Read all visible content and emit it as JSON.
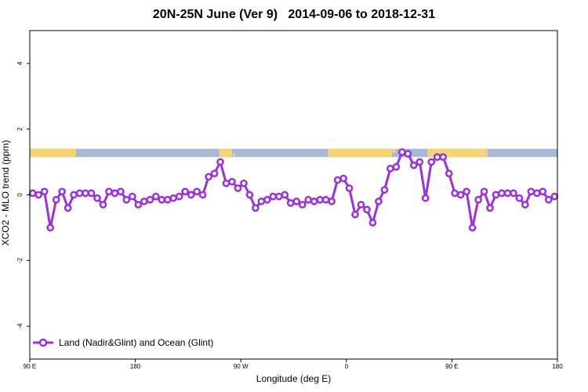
{
  "chart_data": {
    "type": "line",
    "title": "20N-25N June (Ver 9)   2014-09-06 to 2018-12-31",
    "xlabel": "Longitude (deg E)",
    "ylabel": "XCO2 - MLO trend (ppm)",
    "xlim": [
      90,
      360
    ],
    "ylim": [
      -5,
      5
    ],
    "x_ticks": [
      {
        "value": 90,
        "label": "90 E"
      },
      {
        "value": 144,
        "label": "180"
      },
      {
        "value": 198,
        "label": "90 W"
      },
      {
        "value": 252,
        "label": "0"
      },
      {
        "value": 306,
        "label": "90 E"
      },
      {
        "value": 360,
        "label": "180"
      }
    ],
    "y_ticks": [
      -4,
      -2,
      0,
      2,
      4
    ],
    "grid": false,
    "legend_position": "bottom-left",
    "land_ocean_strip": {
      "ymin": 1.15,
      "ymax": 1.4,
      "ocean_color": "#a8b9d6",
      "land_color": "#f7d473"
    },
    "series": [
      {
        "name": "Land (Nadir&Glint) and Ocean (Glint)",
        "color": "#9b30e0",
        "x": [
          91.5,
          94.5,
          97.5,
          100.5,
          103.5,
          106.5,
          109.5,
          112.5,
          115.5,
          118.5,
          121.5,
          124.5,
          127.5,
          130.5,
          133.5,
          136.5,
          139.5,
          142.5,
          145.5,
          148.5,
          151.5,
          154.5,
          157.5,
          160.5,
          163.5,
          166.5,
          169.5,
          172.5,
          175.5,
          178.5,
          181.5,
          184.5,
          187.5,
          190.5,
          193.5,
          196.5,
          199.5,
          202.5,
          205.5,
          208.5,
          211.5,
          214.5,
          217.5,
          220.5,
          223.5,
          226.5,
          229.5,
          232.5,
          235.5,
          238.5,
          241.5,
          244.5,
          247.5,
          250.5,
          253.5,
          256.5,
          259.5,
          262.5,
          265.5,
          268.5,
          271.5,
          274.5,
          277.5,
          280.5,
          283.5,
          286.5,
          289.5,
          292.5,
          295.5,
          298.5,
          301.5,
          304.5,
          307.5,
          310.5,
          313.5,
          316.5,
          319.5,
          322.5,
          325.5,
          328.5,
          331.5,
          334.5,
          337.5,
          340.5,
          343.5,
          346.5,
          349.5,
          352.5,
          355.5,
          358.5
        ],
        "values": [
          0.05,
          0.0,
          0.1,
          -1.0,
          -0.15,
          0.1,
          -0.4,
          0.0,
          0.05,
          0.05,
          0.05,
          -0.1,
          -0.3,
          0.1,
          0.05,
          0.1,
          -0.15,
          -0.05,
          -0.3,
          -0.2,
          -0.15,
          -0.05,
          -0.15,
          -0.15,
          -0.1,
          -0.05,
          0.1,
          0.0,
          0.1,
          0.0,
          0.55,
          0.65,
          1.0,
          0.35,
          0.4,
          0.2,
          0.35,
          0.0,
          -0.4,
          -0.2,
          -0.15,
          -0.05,
          -0.05,
          0.0,
          -0.25,
          -0.2,
          -0.3,
          -0.15,
          -0.2,
          -0.15,
          -0.15,
          -0.2,
          0.45,
          0.5,
          0.2,
          -0.6,
          -0.3,
          -0.45,
          -0.85,
          -0.2,
          0.15,
          0.8,
          0.85,
          1.3,
          1.25,
          0.9,
          1.0,
          -0.1,
          1.0,
          1.15,
          1.15,
          0.65,
          0.05,
          0.0,
          0.1,
          -1.0,
          -0.15,
          0.1,
          -0.4,
          0.0,
          0.05,
          0.05,
          0.05,
          -0.1,
          -0.3,
          0.1,
          0.05,
          0.1,
          -0.15,
          -0.05
        ]
      }
    ]
  }
}
